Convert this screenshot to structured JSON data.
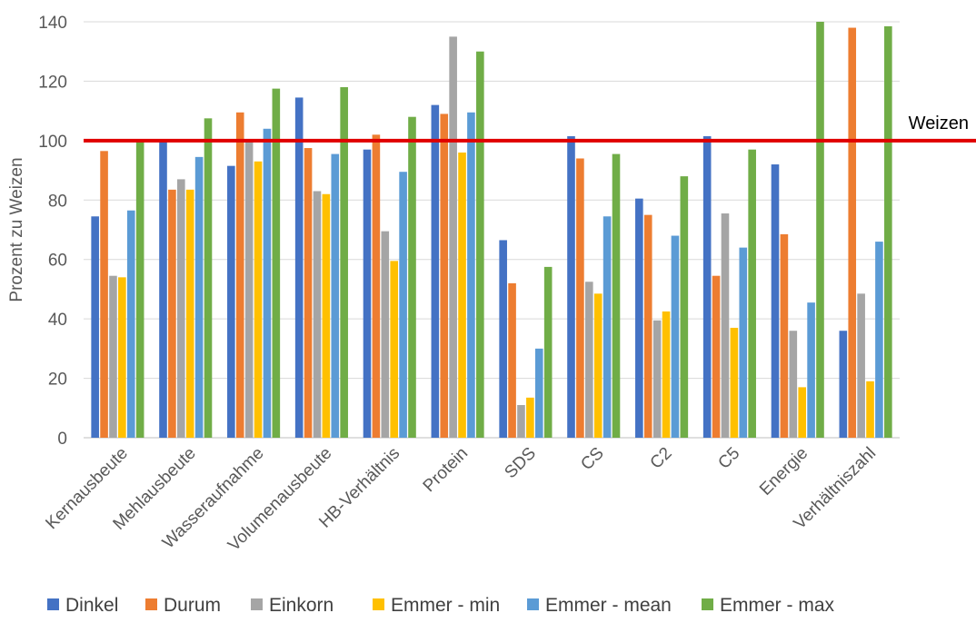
{
  "chart_data": {
    "type": "bar",
    "ylabel": "Prozent zu Weizen",
    "ylim": [
      0,
      140
    ],
    "yticks": [
      0,
      20,
      40,
      60,
      80,
      100,
      120,
      140
    ],
    "grid": true,
    "legend_position": "bottom",
    "categories": [
      "Kernausbeute",
      "Mehlausbeute",
      "Wasseraufnahme",
      "Volumenausbeute",
      "HB-Verhältnis",
      "Protein",
      "SDS",
      "CS",
      "C2",
      "C5",
      "Energie",
      "Verhältniszahl"
    ],
    "series": [
      {
        "name": "Dinkel",
        "color": "#4472C4",
        "values": [
          74.5,
          100,
          91.5,
          114.5,
          97,
          112,
          66.5,
          101.5,
          80.5,
          101.5,
          92,
          36
        ]
      },
      {
        "name": "Durum",
        "color": "#ED7D31",
        "values": [
          96.5,
          83.5,
          109.5,
          97.5,
          102,
          109,
          52,
          94,
          75,
          54.5,
          68.5,
          138
        ]
      },
      {
        "name": "Einkorn",
        "color": "#A5A5A5",
        "values": [
          54.5,
          87,
          100,
          83,
          69.5,
          135,
          11,
          52.5,
          39.5,
          75.5,
          36,
          48.5
        ]
      },
      {
        "name": "Emmer - min",
        "color": "#FFC000",
        "values": [
          54,
          83.5,
          93,
          82,
          59.5,
          96,
          13.5,
          48.5,
          42.5,
          37,
          17,
          19
        ]
      },
      {
        "name": "Emmer - mean",
        "color": "#5B9BD5",
        "values": [
          76.5,
          94.5,
          104,
          95.5,
          89.5,
          109.5,
          30,
          74.5,
          68,
          64,
          45.5,
          66
        ]
      },
      {
        "name": "Emmer - max",
        "color": "#70AD47",
        "values": [
          100,
          107.5,
          117.5,
          118,
          108,
          130,
          57.5,
          95.5,
          88,
          97,
          140,
          138.5
        ]
      }
    ],
    "reference_line": {
      "value": 100,
      "label": "Weizen",
      "color": "#E00000"
    }
  }
}
